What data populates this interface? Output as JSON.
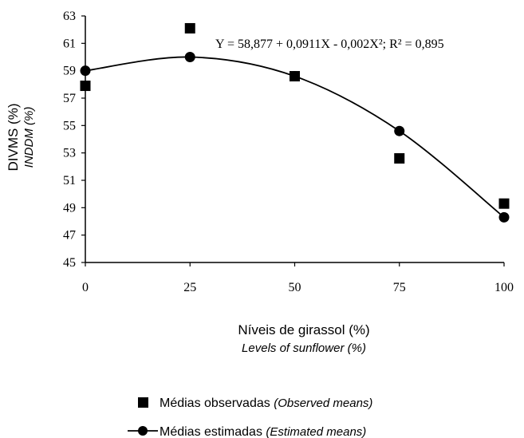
{
  "chart_data": {
    "type": "scatter",
    "xlabel": "Níveis de girassol (%)",
    "xlabel_sub": "Levels of sunflower (%)",
    "ylabel": "DIVMS (%)",
    "ylabel_sub": "INDDM (%)",
    "x_ticks": [
      "0",
      "25",
      "50",
      "75",
      "100"
    ],
    "y_ticks": [
      "45",
      "47",
      "49",
      "51",
      "53",
      "55",
      "57",
      "59",
      "61",
      "63"
    ],
    "xlim": [
      0,
      100
    ],
    "ylim": [
      45,
      63
    ],
    "equation": "Y = 58,877 + 0,0911X - 0,002X²; R² = 0,895",
    "grid": false,
    "legend_position": "bottom-center",
    "series": [
      {
        "name": "Médias observadas",
        "name_sub": "(Observed means)",
        "marker": "square",
        "x": [
          0,
          25,
          50,
          75,
          100
        ],
        "y": [
          57.9,
          62.1,
          58.6,
          52.6,
          49.3
        ]
      },
      {
        "name": "Médias estimadas",
        "name_sub": "(Estimated means)",
        "marker": "circle",
        "line": true,
        "x": [
          0,
          25,
          50,
          75,
          100
        ],
        "y": [
          59.0,
          60.0,
          58.6,
          54.6,
          48.3
        ]
      }
    ]
  }
}
